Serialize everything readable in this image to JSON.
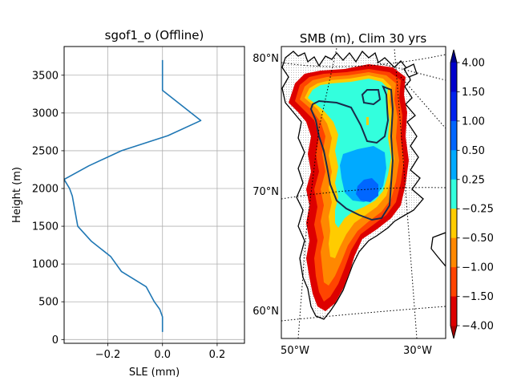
{
  "chart_data": [
    {
      "type": "line",
      "title": "sgof1_o (Offline)",
      "xlabel": "SLE (mm)",
      "ylabel": "Height (m)",
      "xlim": [
        -0.36,
        0.3
      ],
      "ylim": [
        -50,
        3880
      ],
      "xticks": [
        -0.2,
        0.0,
        0.2
      ],
      "xtick_labels": [
        "−0.2",
        "0.0",
        "0.2"
      ],
      "yticks": [
        0,
        500,
        1000,
        1500,
        2000,
        2500,
        3000,
        3500
      ],
      "ytick_labels": [
        "0",
        "500",
        "1000",
        "1500",
        "2000",
        "2500",
        "3000",
        "3500"
      ],
      "grid": true,
      "series": [
        {
          "color": "#1f77b4",
          "x": [
            0.0,
            0.0,
            -0.01,
            -0.03,
            -0.06,
            -0.15,
            -0.19,
            -0.26,
            -0.31,
            -0.32,
            -0.33,
            -0.34,
            -0.36,
            -0.27,
            -0.15,
            0.02,
            0.14,
            0.0,
            0.0
          ],
          "y": [
            100,
            300,
            400,
            500,
            700,
            900,
            1100,
            1300,
            1500,
            1700,
            1900,
            2000,
            2120,
            2300,
            2500,
            2700,
            2900,
            3300,
            3700
          ]
        }
      ]
    },
    {
      "type": "heatmap",
      "title": "SMB (m), Clim 30 yrs",
      "lat_labels": [
        "80°N",
        "70°N",
        "60°N"
      ],
      "lon_labels": [
        "50°W",
        "30°W"
      ],
      "colorbar": {
        "tick_labels": [
          "4.00",
          "1.50",
          "1.00",
          "0.50",
          "0.25",
          "−0.25",
          "−0.50",
          "−1.00",
          "−1.50",
          "−4.00"
        ],
        "colors_top_to_bottom": [
          "#0000cc",
          "#0022ee",
          "#0066ff",
          "#00aaff",
          "#33ffdd",
          "#ffcc00",
          "#ff8800",
          "#ff4400",
          "#dd0000"
        ],
        "extend": "both"
      }
    }
  ]
}
